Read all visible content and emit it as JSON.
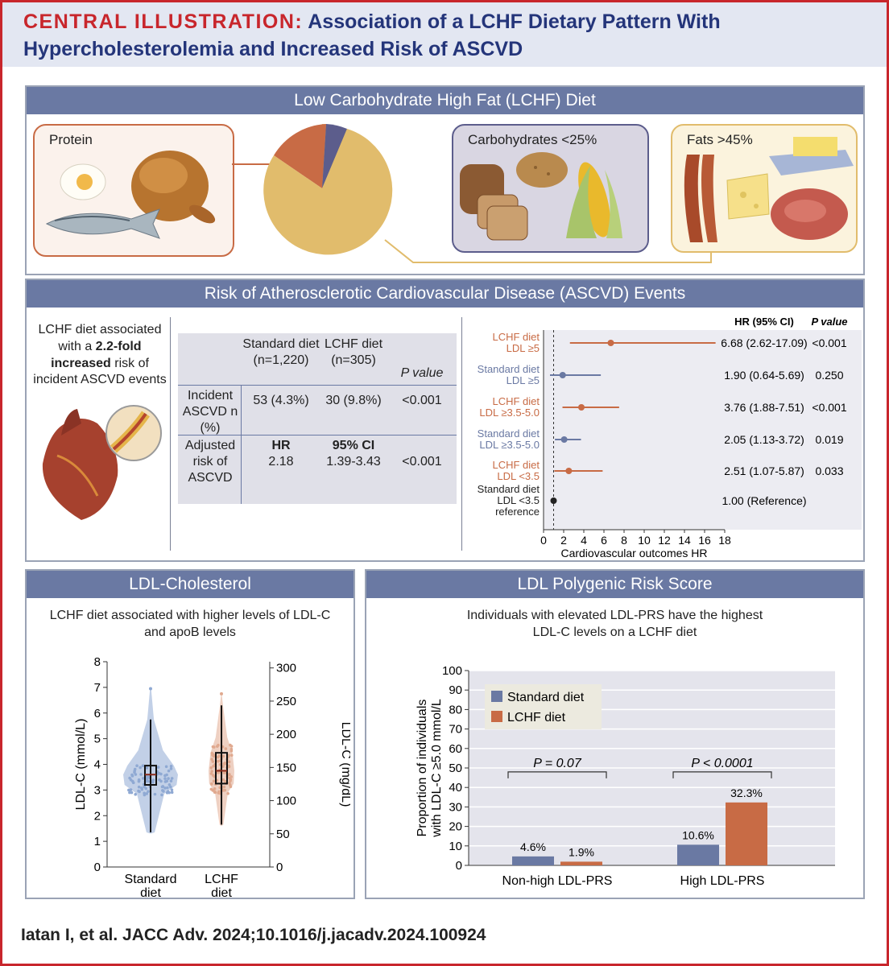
{
  "header": {
    "lead": "CENTRAL ILLUSTRATION:",
    "title_part1": "Association of a LCHF Dietary Pattern With",
    "title_part2": "Hypercholesterolemia and Increased Risk of ASCVD"
  },
  "diet_panel": {
    "title": "Low Carbohydrate High Fat (LCHF) Diet",
    "protein_label": "Protein",
    "carb_label": "Carbohydrates <25%",
    "fat_label": "Fats >45%",
    "pie_segments": [
      {
        "name": "Protein",
        "color": "#c86b45"
      },
      {
        "name": "Carbohydrates",
        "color": "#5c5d8c"
      },
      {
        "name": "Fats",
        "color": "#e1bc6c"
      }
    ]
  },
  "risk_panel": {
    "title": "Risk of Atherosclerotic Cardiovascular Disease (ASCVD) Events",
    "statement_pre": "LCHF diet associated with a ",
    "statement_bold": "2.2-fold increased",
    "statement_post": " risk of incident ASCVD events",
    "table": {
      "col_standard": "Standard diet",
      "col_standard_n": "(n=1,220)",
      "col_lchf": "LCHF diet",
      "col_lchf_n": "(n=305)",
      "col_p": "P value",
      "row1_label": "Incident ASCVD n (%)",
      "row1_standard": "53 (4.3%)",
      "row1_lchf": "30 (9.8%)",
      "row1_p": "<0.001",
      "row2_label": "Adjusted risk of ASCVD",
      "row2_hr_head": "HR",
      "row2_hr": "2.18",
      "row2_ci_head": "95% CI",
      "row2_ci": "1.39-3.43",
      "row2_p": "<0.001"
    }
  },
  "ldl_panel": {
    "title": "LDL-Cholesterol",
    "statement_line1": "LCHF diet associated with higher levels of LDL-C",
    "statement_line2": "and apoB levels"
  },
  "prs_panel": {
    "title": "LDL Polygenic Risk Score",
    "statement_line1": "Individuals with elevated LDL-PRS have the highest",
    "statement_line2": "LDL-C levels on a LCHF diet"
  },
  "footer": {
    "citation": "Iatan I, et al. JACC Adv. 2024;10.1016/j.jacadv.2024.100924"
  },
  "chart_data": [
    {
      "type": "forest",
      "title": "",
      "header_hr": "HR (95% CI)",
      "header_p": "P value",
      "xlabel": "Cardiovascular outcomes HR",
      "xlim": [
        0,
        18
      ],
      "xticks": [
        0,
        2,
        4,
        6,
        8,
        10,
        12,
        14,
        16,
        18
      ],
      "reference_line": 1,
      "rows": [
        {
          "label1": "LCHF diet",
          "label2": "LDL ≥5",
          "label3": "",
          "group": "lchf",
          "hr": 6.68,
          "lo": 2.62,
          "hi": 17.09,
          "hr_text": "6.68 (2.62-17.09)",
          "p": "<0.001"
        },
        {
          "label1": "Standard diet",
          "label2": "LDL ≥5",
          "label3": "",
          "group": "standard",
          "hr": 1.9,
          "lo": 0.64,
          "hi": 5.69,
          "hr_text": "1.90 (0.64-5.69)",
          "p": "0.250"
        },
        {
          "label1": "LCHF diet",
          "label2": "LDL ≥3.5-5.0",
          "label3": "",
          "group": "lchf",
          "hr": 3.76,
          "lo": 1.88,
          "hi": 7.51,
          "hr_text": "3.76 (1.88-7.51)",
          "p": "<0.001"
        },
        {
          "label1": "Standard diet",
          "label2": "LDL ≥3.5-5.0",
          "label3": "",
          "group": "standard",
          "hr": 2.05,
          "lo": 1.13,
          "hi": 3.72,
          "hr_text": "2.05 (1.13-3.72)",
          "p": "0.019"
        },
        {
          "label1": "LCHF diet",
          "label2": "LDL <3.5",
          "label3": "",
          "group": "lchf",
          "hr": 2.51,
          "lo": 1.07,
          "hi": 5.87,
          "hr_text": "2.51 (1.07-5.87)",
          "p": "0.033"
        },
        {
          "label1": "Standard diet",
          "label2": "LDL <3.5",
          "label3": "reference",
          "group": "reference",
          "hr": 1.0,
          "lo": null,
          "hi": null,
          "hr_text": "1.00 (Reference)",
          "p": ""
        }
      ],
      "colors": {
        "lchf": "#c86b45",
        "standard": "#6a79a3",
        "reference": "#222222"
      }
    },
    {
      "type": "violin-box",
      "ylabel_left": "LDL-C (mmol/L)",
      "ylabel_right": "LDL-C (mg/dL)",
      "ylim_left": [
        0,
        8
      ],
      "yticks_left": [
        0,
        1,
        2,
        3,
        4,
        5,
        6,
        7,
        8
      ],
      "yticks_right": [
        0,
        50,
        100,
        150,
        200,
        250,
        300
      ],
      "groups": [
        {
          "line1": "Standard",
          "line2": "diet",
          "median": 3.6,
          "q1": 3.2,
          "q3": 3.95,
          "whisker_lo": 1.35,
          "whisker_hi": 5.75,
          "max": 6.95,
          "color": "#8fa9d3"
        },
        {
          "line1": "LCHF",
          "line2": "diet",
          "median": 3.75,
          "q1": 3.25,
          "q3": 4.45,
          "whisker_lo": 1.65,
          "whisker_hi": 6.3,
          "max": 6.75,
          "color": "#e0a98f"
        }
      ]
    },
    {
      "type": "bar",
      "ylabel_line1": "Proportion of individuals",
      "ylabel_line2": "with LDL-C ≥5.0 mmol/L",
      "ylim": [
        0,
        100
      ],
      "yticks": [
        0,
        10,
        20,
        30,
        40,
        50,
        60,
        70,
        80,
        90,
        100
      ],
      "categories": [
        "Non-high LDL-PRS",
        "High LDL-PRS"
      ],
      "series": [
        {
          "name": "Standard diet",
          "values": [
            4.6,
            10.6
          ],
          "labels": [
            "4.6%",
            "10.6%"
          ],
          "color": "#6a79a3"
        },
        {
          "name": "LCHF diet",
          "values": [
            1.9,
            32.3
          ],
          "labels": [
            "1.9%",
            "32.3%"
          ],
          "color": "#c86b45"
        }
      ],
      "annotations": [
        "P = 0.07",
        "P < 0.0001"
      ]
    }
  ]
}
